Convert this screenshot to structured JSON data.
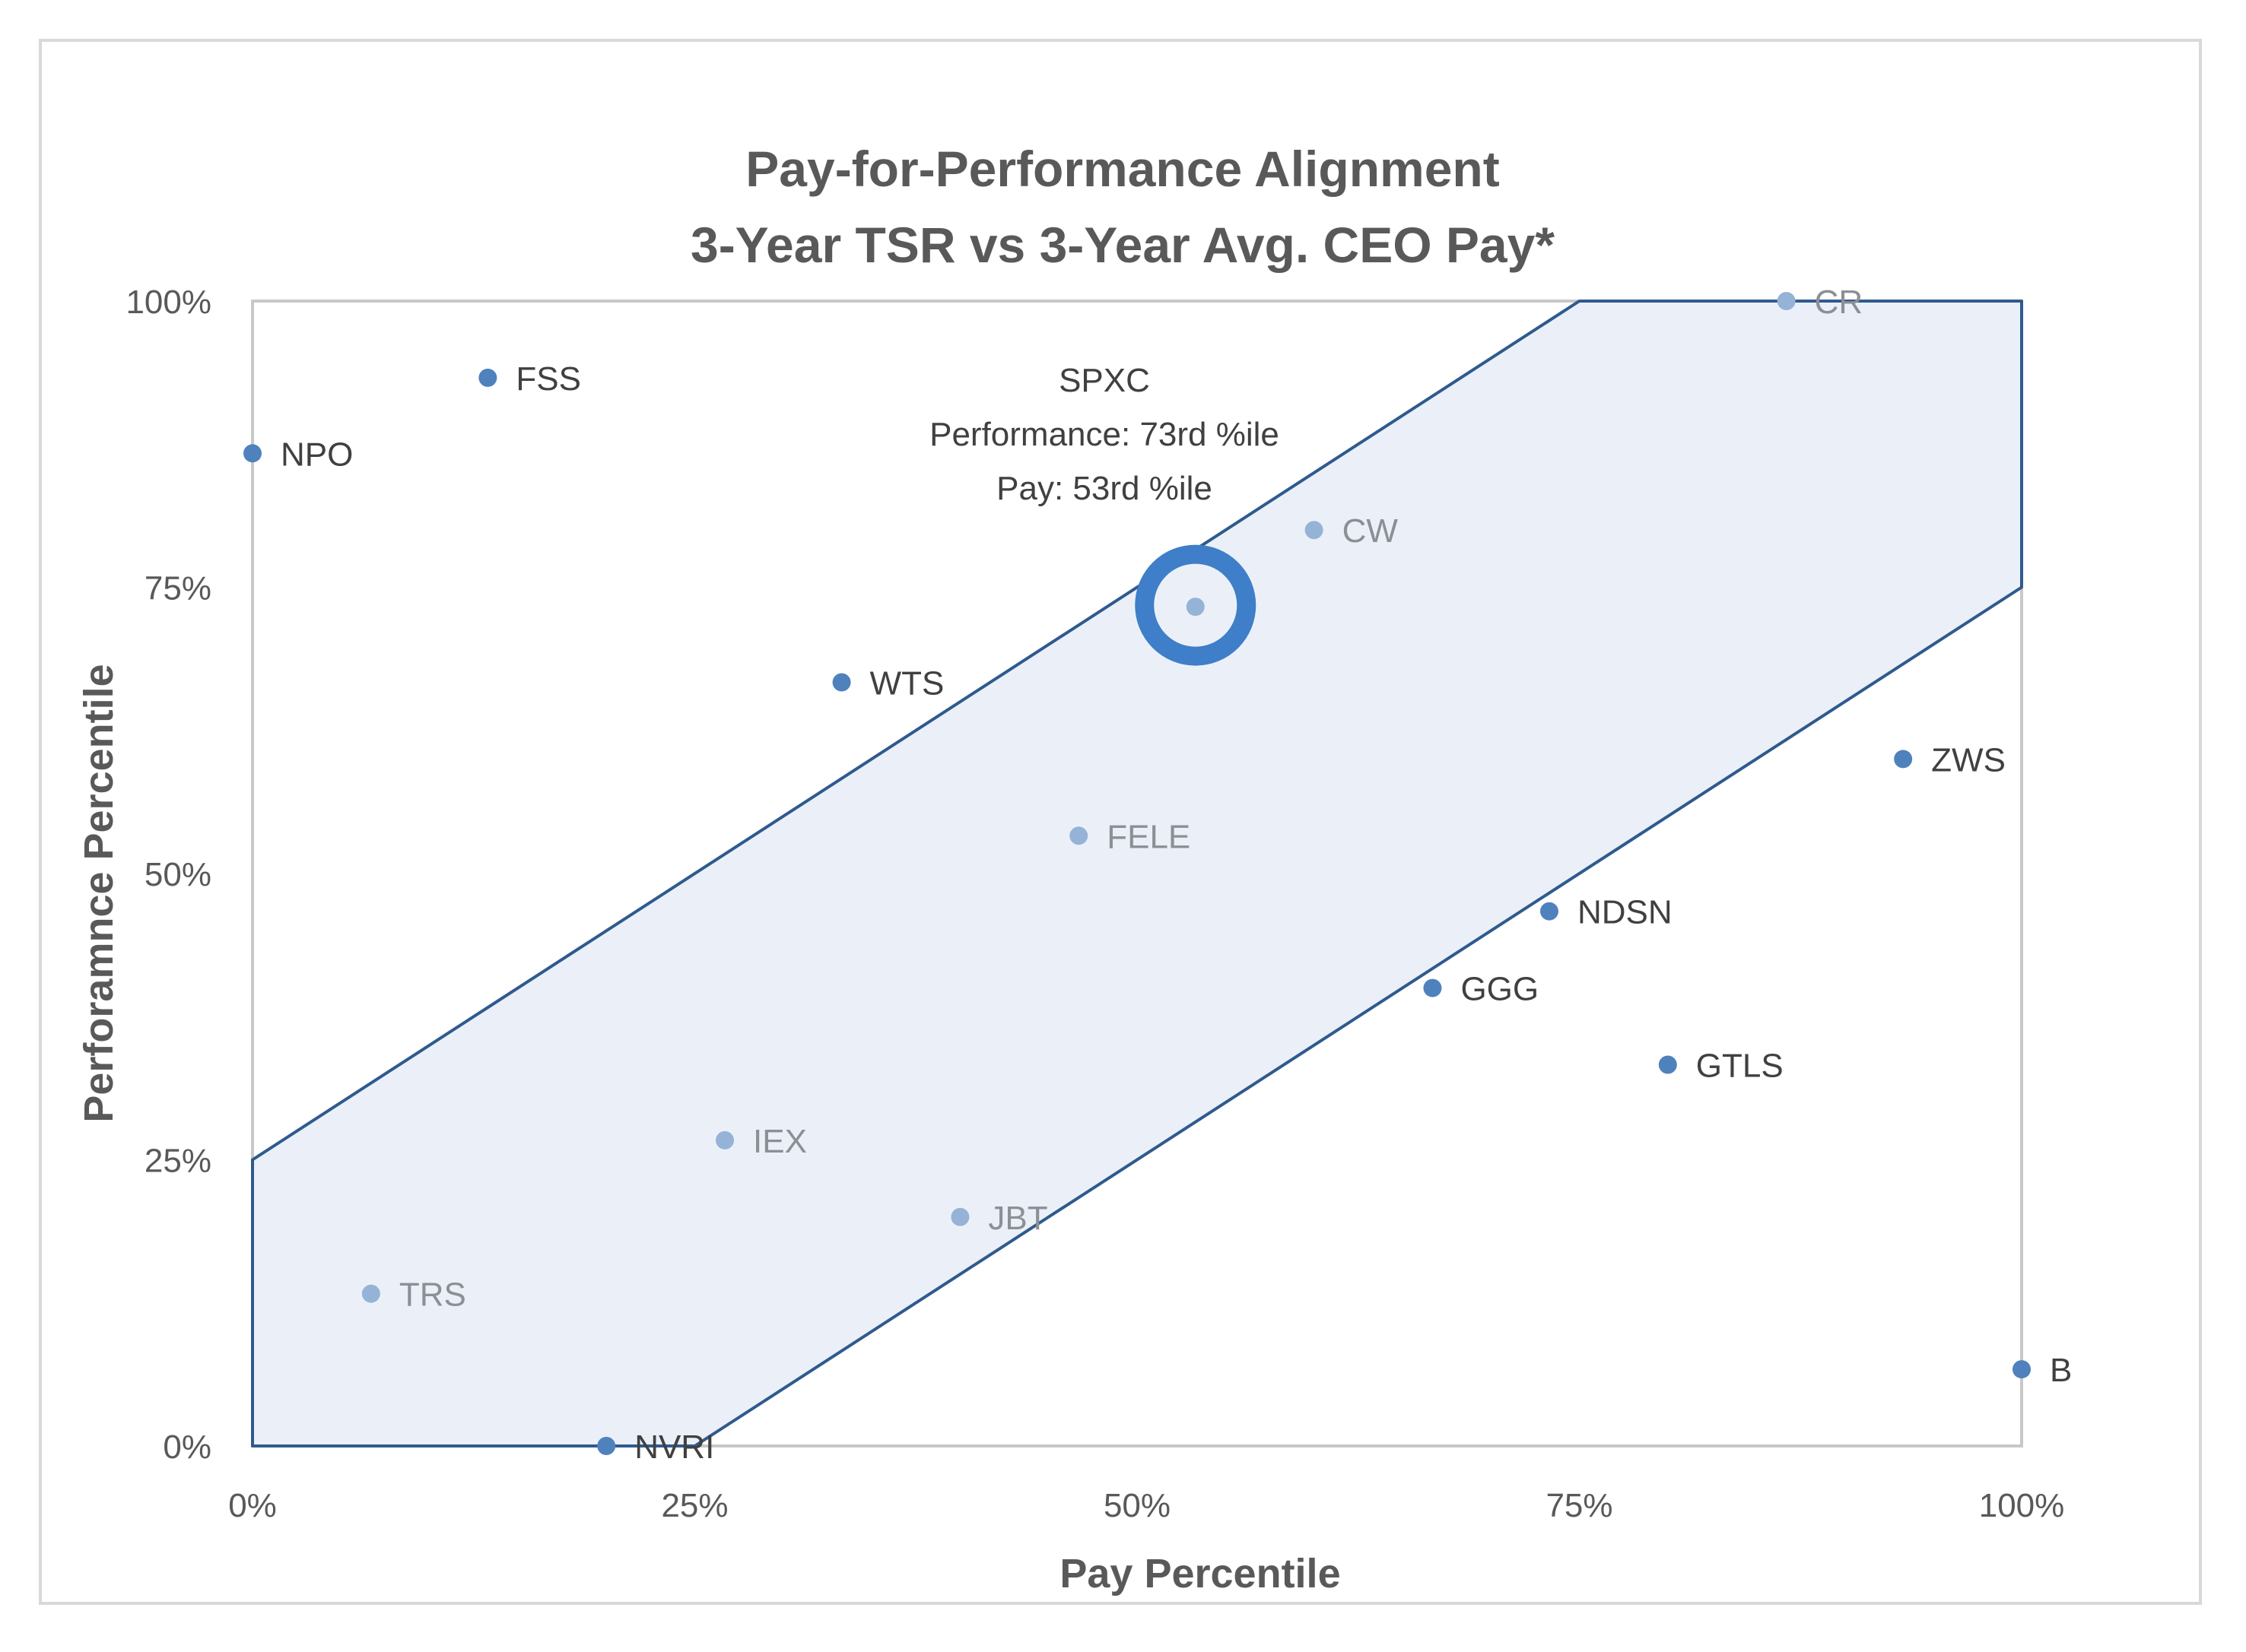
{
  "chart_data": {
    "type": "scatter",
    "title": "Pay-for-Performance Alignment",
    "subtitle": "3-Year TSR vs 3-Year Avg. CEO Pay*",
    "xlabel": "Pay Percentile",
    "ylabel": "Perforamnce Percentile",
    "xlim": [
      0,
      100
    ],
    "ylim": [
      0,
      100
    ],
    "x_ticks": [
      "0%",
      "25%",
      "50%",
      "75%",
      "100%"
    ],
    "y_ticks": [
      "0%",
      "25%",
      "50%",
      "75%",
      "100%"
    ],
    "grid": false,
    "legend": null,
    "alignment_band": {
      "description": "Shaded region where |Performance - Pay| <= 25 percentile points",
      "polygon": [
        [
          0,
          0
        ],
        [
          25,
          0
        ],
        [
          100,
          75
        ],
        [
          100,
          100
        ],
        [
          75,
          100
        ],
        [
          0,
          25
        ]
      ]
    },
    "points": [
      {
        "label": "NPO",
        "pay": 0.0,
        "performance": 86.7,
        "style": "dark"
      },
      {
        "label": "FSS",
        "pay": 13.3,
        "performance": 93.3,
        "style": "dark"
      },
      {
        "label": "WTS",
        "pay": 33.3,
        "performance": 66.7,
        "style": "dark"
      },
      {
        "label": "CW",
        "pay": 60.0,
        "performance": 80.0,
        "style": "light"
      },
      {
        "label": "CR",
        "pay": 86.7,
        "performance": 100.0,
        "style": "light"
      },
      {
        "label": "ZWS",
        "pay": 93.3,
        "performance": 60.0,
        "style": "dark"
      },
      {
        "label": "FELE",
        "pay": 46.7,
        "performance": 53.3,
        "style": "light"
      },
      {
        "label": "NDSN",
        "pay": 73.3,
        "performance": 46.7,
        "style": "dark"
      },
      {
        "label": "GGG",
        "pay": 66.7,
        "performance": 40.0,
        "style": "dark"
      },
      {
        "label": "GTLS",
        "pay": 80.0,
        "performance": 33.3,
        "style": "dark"
      },
      {
        "label": "IEX",
        "pay": 26.7,
        "performance": 26.7,
        "style": "light"
      },
      {
        "label": "JBT",
        "pay": 40.0,
        "performance": 20.0,
        "style": "light"
      },
      {
        "label": "TRS",
        "pay": 6.7,
        "performance": 13.3,
        "style": "light"
      },
      {
        "label": "NVRI",
        "pay": 20.0,
        "performance": 0.0,
        "style": "dark"
      },
      {
        "label": "B",
        "pay": 100.0,
        "performance": 6.7,
        "style": "dark"
      },
      {
        "label": "",
        "pay": 53.3,
        "performance": 73.3,
        "style": "light",
        "highlight": true
      }
    ],
    "highlight": {
      "company": "SPXC",
      "lines": [
        "SPXC",
        "Performance: 73rd %ile",
        "Pay: 53rd %ile"
      ],
      "pay": 53.3,
      "performance": 73.3
    }
  },
  "colors": {
    "dark_point": "#4F81BD",
    "light_point": "#95B3D7",
    "dark_label": "#404040",
    "light_label": "#8C8F94",
    "band_fill": "#EBF0F8",
    "band_stroke": "#2F5A8E",
    "highlight_ring": "#3F7EC8",
    "axis_line": "#C8C8C8"
  }
}
